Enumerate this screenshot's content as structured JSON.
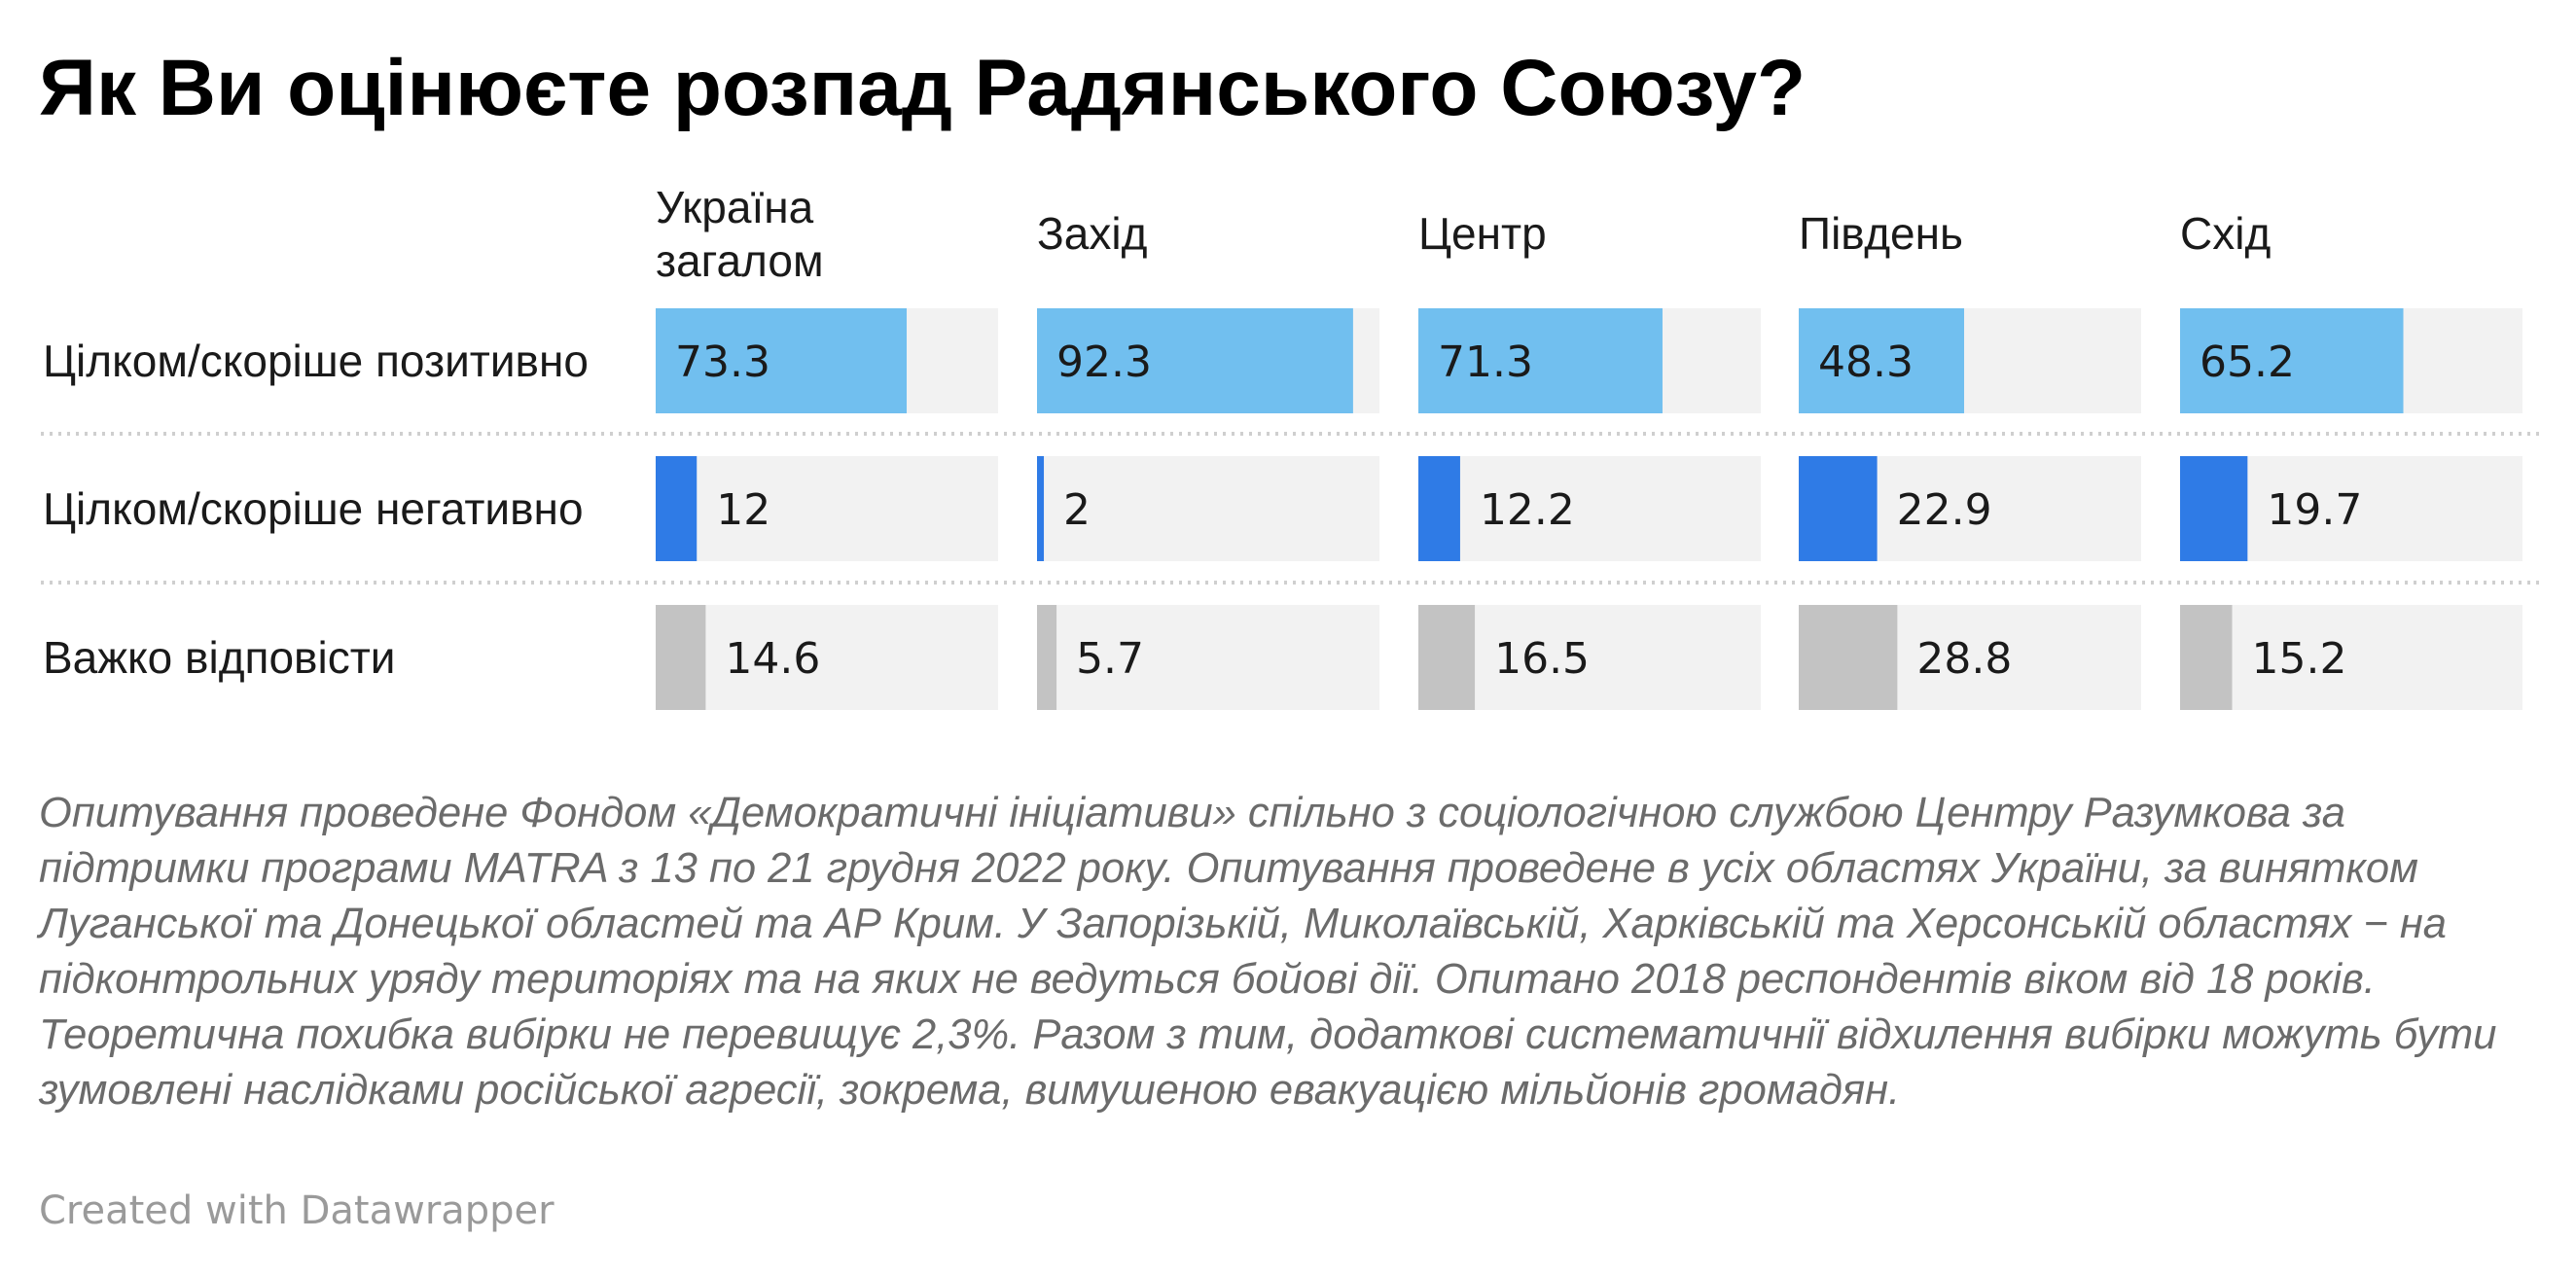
{
  "title": "Як Ви оцінюєте розпад Радянського Союзу?",
  "note": "Опитування проведене Фондом «Демократичні ініціативи» спільно з соціологічною службою Центру Разумкова за підтримки програми MATRA з 13 по 21 грудня 2022 року. Опитування проведене в усіх областях України, за винятком Луганської та Донецької областей та АР Крим. У Запорізькій, Миколаївській, Харківській та Херсонській областях − на підконтрольних уряду територіях та на яких не ведуться бойові дії. Опитано 2018 респондентів віком від 18 років. Теоретична похибка вибірки не перевищує 2,3%. Разом з тим, додаткові систематичнії відхилення вибірки можуть бути зумовлені наслідками російської агресії, зокрема, вимушеною евакуацією мільйонів громадян.",
  "credit": "Created with Datawrapper",
  "colors": {
    "positive": "#71bfef",
    "negative": "#2f7be6",
    "hard": "#c3c3c3",
    "track": "#f2f2f2",
    "divider": "#cfcfcf"
  },
  "chart_data": {
    "type": "bar",
    "title": "Як Ви оцінюєте розпад Радянського Союзу?",
    "ylim": [
      0,
      100
    ],
    "categories": [
      [
        "Україна",
        "загалом"
      ],
      [
        "Захід"
      ],
      [
        "Центр"
      ],
      [
        "Південь"
      ],
      [
        "Схід"
      ]
    ],
    "series": [
      {
        "name": "Цілком/скоріше позитивно",
        "values": [
          73.3,
          92.3,
          71.3,
          48.3,
          65.2
        ],
        "labels": [
          "73.3",
          "92.3",
          "71.3",
          "48.3",
          "65.2"
        ]
      },
      {
        "name": "Цілком/скоріше негативно",
        "values": [
          12,
          2,
          12.2,
          22.9,
          19.7
        ],
        "labels": [
          "12",
          "2",
          "12.2",
          "22.9",
          "19.7"
        ]
      },
      {
        "name": "Важко відповісти",
        "values": [
          14.6,
          5.7,
          16.5,
          28.8,
          15.2
        ],
        "labels": [
          "14.6",
          "5.7",
          "16.5",
          "28.8",
          "15.2"
        ]
      }
    ]
  }
}
